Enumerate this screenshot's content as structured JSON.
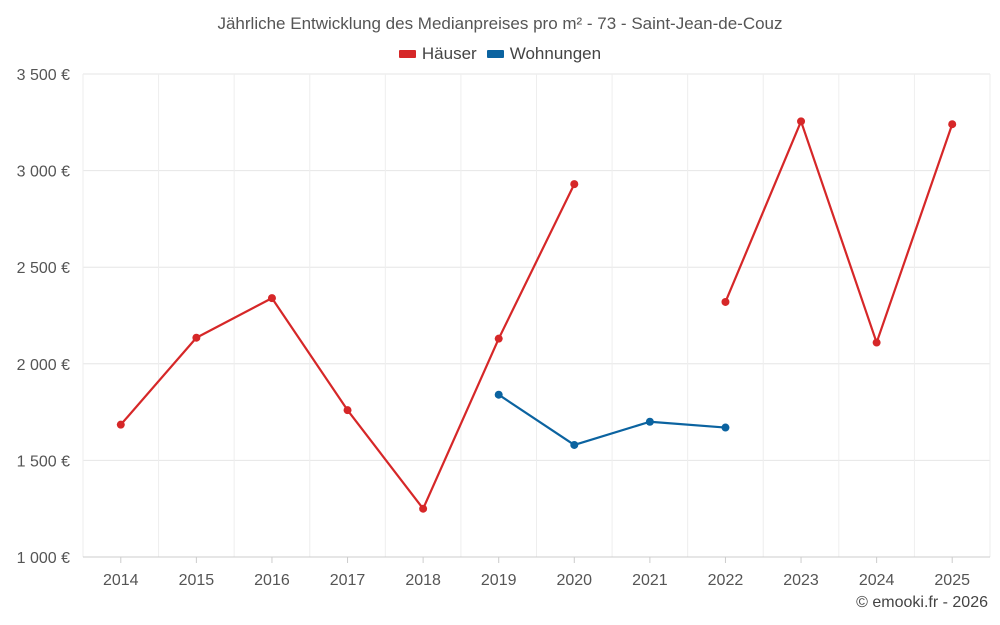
{
  "chart_data": {
    "type": "line",
    "title": "Jährliche Entwicklung des Medianpreises pro m² - 73 - Saint-Jean-de-Couz",
    "x": [
      "2014",
      "2015",
      "2016",
      "2017",
      "2018",
      "2019",
      "2020",
      "2021",
      "2022",
      "2023",
      "2024",
      "2025"
    ],
    "y_ticks": [
      "1 000 €",
      "1 500 €",
      "2 000 €",
      "2 500 €",
      "3 000 €",
      "3 500 €"
    ],
    "y_tick_values": [
      1000,
      1500,
      2000,
      2500,
      3000,
      3500
    ],
    "ylim": [
      1000,
      3500
    ],
    "grid": true,
    "legend_position": "top-center",
    "series": [
      {
        "name": "Häuser",
        "color": "#d62728",
        "values": [
          1685,
          2135,
          2340,
          1760,
          1250,
          2130,
          2930,
          null,
          2320,
          3255,
          2110,
          3240
        ]
      },
      {
        "name": "Wohnungen",
        "color": "#0b63a0",
        "values": [
          null,
          null,
          null,
          null,
          null,
          1840,
          1580,
          1700,
          1670,
          null,
          null,
          null
        ]
      }
    ]
  },
  "credit": "© emooki.fr - 2026"
}
